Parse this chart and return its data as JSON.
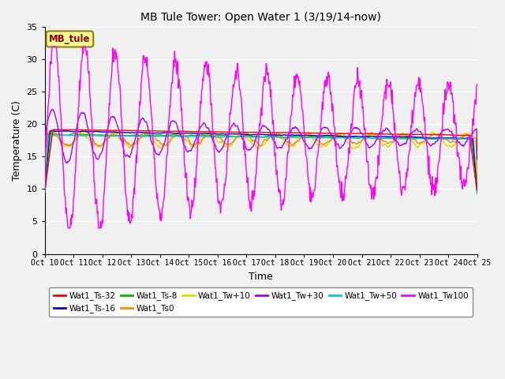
{
  "title": "MB Tule Tower: Open Water 1 (3/19/14-now)",
  "xlabel": "Time",
  "ylabel": "Temperature (C)",
  "ylim": [
    0,
    35
  ],
  "x_ticks": [
    10,
    11,
    12,
    13,
    14,
    15,
    16,
    17,
    18,
    19,
    20,
    21,
    22,
    23,
    24,
    25
  ],
  "x_tick_labels": [
    "Oct 10",
    "Oct 11",
    "Oct 12",
    "Oct 13",
    "Oct 14",
    "Oct 15",
    "Oct 16",
    "Oct 17",
    "Oct 18",
    "Oct 19",
    "Oct 20",
    "Oct 21",
    "Oct 22",
    "Oct 23",
    "Oct 24",
    "Oct 25"
  ],
  "y_ticks": [
    0,
    5,
    10,
    15,
    20,
    25,
    30,
    35
  ],
  "series": {
    "Wat1_Ts-32": {
      "color": "#ff0000"
    },
    "Wat1_Ts-16": {
      "color": "#0000cc"
    },
    "Wat1_Ts-8": {
      "color": "#00bb00"
    },
    "Wat1_Ts0": {
      "color": "#ff8800"
    },
    "Wat1_Tw+10": {
      "color": "#dddd00"
    },
    "Wat1_Tw+30": {
      "color": "#aa00ff"
    },
    "Wat1_Tw+50": {
      "color": "#00cccc"
    },
    "Wat1_Tw100": {
      "color": "#ff00ff"
    }
  },
  "legend_label": "MB_tule",
  "legend_bg": "#ffff99",
  "legend_border": "#8B8000"
}
